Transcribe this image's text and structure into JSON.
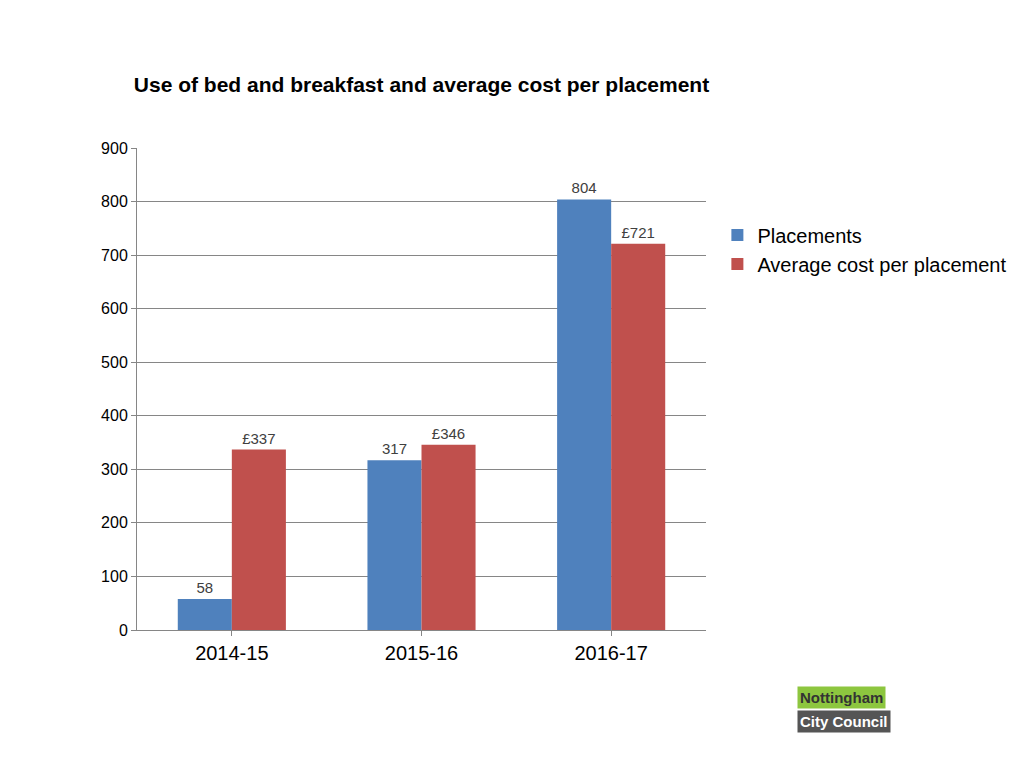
{
  "chart_data": {
    "type": "bar",
    "title": "Use of bed and breakfast and average cost per placement",
    "categories": [
      "2014-15",
      "2015-16",
      "2016-17"
    ],
    "series": [
      {
        "name": "Placements",
        "color": "#4F81BD",
        "values": [
          58,
          317,
          804
        ]
      },
      {
        "name": "Average cost per placement",
        "color": "#C0504D",
        "values": [
          337,
          346,
          721
        ],
        "value_labels": [
          "£337",
          "£346",
          "£721"
        ]
      }
    ],
    "ylim": [
      0,
      900
    ],
    "yticks": [
      0,
      100,
      200,
      300,
      400,
      500,
      600,
      700,
      800,
      900
    ],
    "grid": true,
    "legend": "right",
    "data_labels": true,
    "logo_text": [
      "Nottingham",
      "City Council"
    ]
  }
}
